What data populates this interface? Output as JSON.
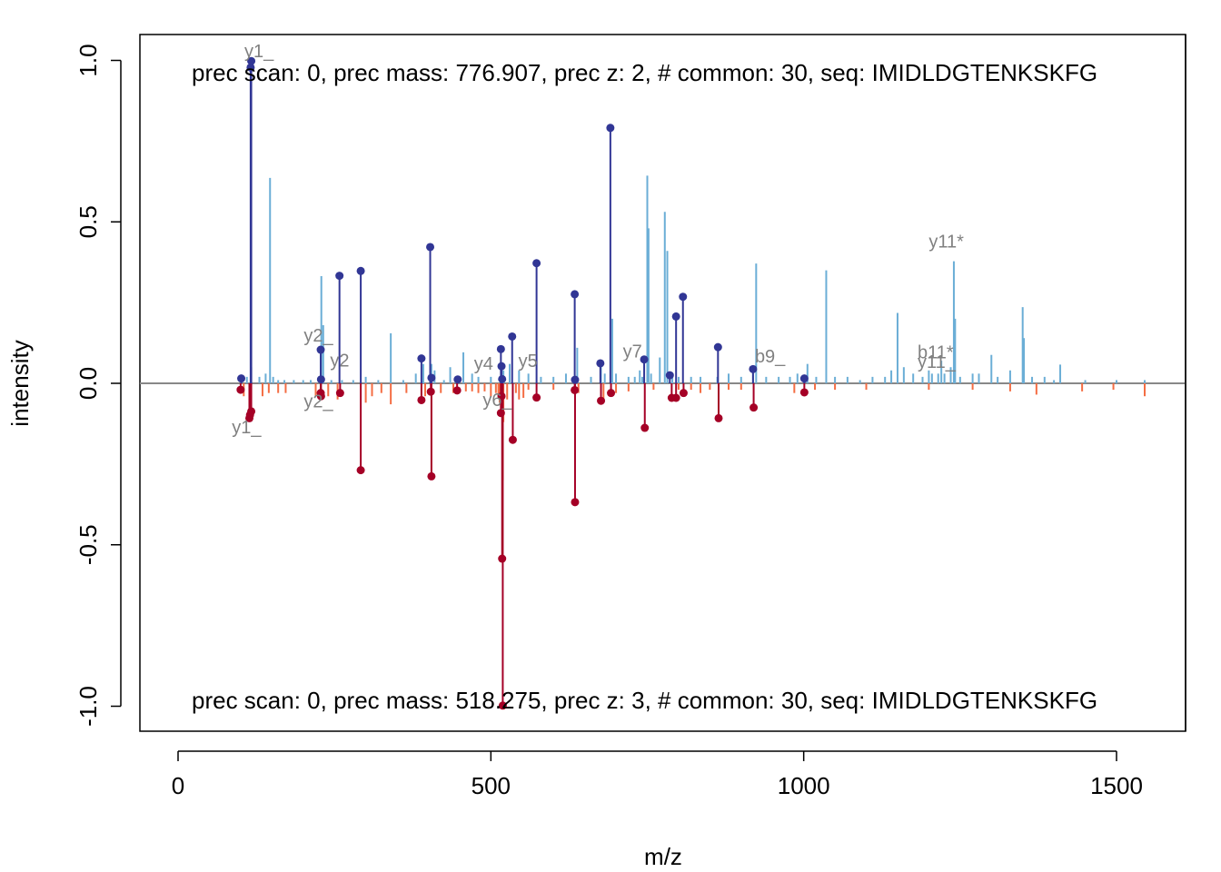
{
  "chart_data": {
    "type": "mirror-spectrum",
    "xlabel": "m/z",
    "ylabel": "intensity",
    "xlim": [
      0,
      1620
    ],
    "ylim": [
      -1.08,
      1.08
    ],
    "x_ticks": [
      0,
      500,
      1000,
      1500
    ],
    "x_tick_labels": [
      "0",
      "500",
      "1000",
      "1500"
    ],
    "y_ticks": [
      -1.0,
      -0.5,
      0.0,
      0.5,
      1.0
    ],
    "y_tick_labels": [
      "-1.0",
      "-0.5",
      "0.0",
      "0.5",
      "1.0"
    ],
    "grid": false,
    "top_header": "prec scan: 0, prec mass: 776.907, prec z: 2, # common: 30, seq: IMIDLDGTENKSKFG",
    "bottom_header": "prec scan: 0, prec mass: 518.275, prec z: 3, # common: 30, seq: IMIDLDGTENKSKFG",
    "colors": {
      "top_peak": "#6BAED6",
      "top_match": "#313695",
      "bottom_peak": "#F46D43",
      "bottom_match": "#A50026",
      "zero_line": "#888888",
      "label": "#808080"
    },
    "top_spectrum": {
      "peaks": [
        [
          110,
          0.02
        ],
        [
          117,
          0.05
        ],
        [
          130,
          0.02
        ],
        [
          140,
          0.03
        ],
        [
          147,
          0.636
        ],
        [
          152,
          0.02
        ],
        [
          160,
          0.01
        ],
        [
          170,
          0.01
        ],
        [
          185,
          0.01
        ],
        [
          200,
          0.01
        ],
        [
          212,
          0.01
        ],
        [
          229,
          0.332
        ],
        [
          232,
          0.18
        ],
        [
          245,
          0.01
        ],
        [
          262,
          0.01
        ],
        [
          280,
          0.01
        ],
        [
          300,
          0.02
        ],
        [
          320,
          0.01
        ],
        [
          340,
          0.155
        ],
        [
          360,
          0.01
        ],
        [
          380,
          0.03
        ],
        [
          392,
          0.06
        ],
        [
          405,
          0.06
        ],
        [
          410,
          0.04
        ],
        [
          425,
          0.01
        ],
        [
          435,
          0.05
        ],
        [
          448,
          0.02
        ],
        [
          456,
          0.096
        ],
        [
          470,
          0.03
        ],
        [
          480,
          0.02
        ],
        [
          500,
          0.02
        ],
        [
          520,
          0.04
        ],
        [
          530,
          0.06
        ],
        [
          545,
          0.04
        ],
        [
          560,
          0.03
        ],
        [
          580,
          0.02
        ],
        [
          600,
          0.02
        ],
        [
          620,
          0.03
        ],
        [
          638,
          0.11
        ],
        [
          660,
          0.02
        ],
        [
          676,
          0.05
        ],
        [
          682,
          0.03
        ],
        [
          694,
          0.2
        ],
        [
          700,
          0.03
        ],
        [
          720,
          0.02
        ],
        [
          730,
          0.02
        ],
        [
          738,
          0.04
        ],
        [
          742,
          0.02
        ],
        [
          750,
          0.643
        ],
        [
          752,
          0.48
        ],
        [
          756,
          0.03
        ],
        [
          770,
          0.08
        ],
        [
          778,
          0.531
        ],
        [
          782,
          0.41
        ],
        [
          790,
          0.03
        ],
        [
          800,
          0.02
        ],
        [
          820,
          0.02
        ],
        [
          835,
          0.02
        ],
        [
          862,
          0.02
        ],
        [
          880,
          0.03
        ],
        [
          900,
          0.02
        ],
        [
          919,
          0.03
        ],
        [
          924,
          0.371
        ],
        [
          940,
          0.02
        ],
        [
          960,
          0.02
        ],
        [
          978,
          0.02
        ],
        [
          990,
          0.03
        ],
        [
          1006,
          0.06
        ],
        [
          1020,
          0.02
        ],
        [
          1036,
          0.35
        ],
        [
          1050,
          0.02
        ],
        [
          1070,
          0.02
        ],
        [
          1090,
          0.01
        ],
        [
          1110,
          0.02
        ],
        [
          1130,
          0.02
        ],
        [
          1140,
          0.04
        ],
        [
          1150,
          0.218
        ],
        [
          1160,
          0.05
        ],
        [
          1175,
          0.03
        ],
        [
          1190,
          0.02
        ],
        [
          1200,
          0.04
        ],
        [
          1205,
          0.03
        ],
        [
          1215,
          0.03
        ],
        [
          1220,
          0.07
        ],
        [
          1225,
          0.03
        ],
        [
          1235,
          0.05
        ],
        [
          1240,
          0.378
        ],
        [
          1242,
          0.2
        ],
        [
          1250,
          0.02
        ],
        [
          1270,
          0.03
        ],
        [
          1280,
          0.03
        ],
        [
          1300,
          0.088
        ],
        [
          1310,
          0.02
        ],
        [
          1330,
          0.04
        ],
        [
          1350,
          0.236
        ],
        [
          1352,
          0.14
        ],
        [
          1365,
          0.02
        ],
        [
          1385,
          0.02
        ],
        [
          1400,
          0.01
        ],
        [
          1410,
          0.058
        ],
        [
          1450,
          0.01
        ],
        [
          1500,
          0.01
        ],
        [
          1545,
          0.01
        ]
      ],
      "matched": [
        [
          101,
          0.015
        ],
        [
          116,
          0.978
        ],
        [
          117,
          0.998
        ],
        [
          228,
          0.104
        ],
        [
          228.5,
          0.012
        ],
        [
          258,
          0.333
        ],
        [
          292,
          0.348
        ],
        [
          389,
          0.077
        ],
        [
          403,
          0.422
        ],
        [
          405,
          0.017
        ],
        [
          447,
          0.012
        ],
        [
          516,
          0.106
        ],
        [
          517,
          0.053
        ],
        [
          518,
          0.013
        ],
        [
          534,
          0.145
        ],
        [
          573,
          0.372
        ],
        [
          634,
          0.276
        ],
        [
          634.5,
          0.011
        ],
        [
          675,
          0.062
        ],
        [
          691,
          0.791
        ],
        [
          745,
          0.074
        ],
        [
          786,
          0.025
        ],
        [
          796,
          0.207
        ],
        [
          807,
          0.268
        ],
        [
          863,
          0.112
        ],
        [
          919,
          0.044
        ],
        [
          1001,
          0.015
        ]
      ]
    },
    "bottom_spectrum": {
      "peaks": [
        [
          105,
          0.04
        ],
        [
          135,
          0.04
        ],
        [
          145,
          0.03
        ],
        [
          160,
          0.03
        ],
        [
          172,
          0.03
        ],
        [
          220,
          0.04
        ],
        [
          240,
          0.04
        ],
        [
          255,
          0.05
        ],
        [
          300,
          0.06
        ],
        [
          310,
          0.04
        ],
        [
          325,
          0.03
        ],
        [
          340,
          0.065
        ],
        [
          365,
          0.03
        ],
        [
          395,
          0.04
        ],
        [
          420,
          0.03
        ],
        [
          440,
          0.03
        ],
        [
          460,
          0.025
        ],
        [
          470,
          0.025
        ],
        [
          480,
          0.03
        ],
        [
          490,
          0.025
        ],
        [
          500,
          0.04
        ],
        [
          508,
          0.03
        ],
        [
          512,
          0.04
        ],
        [
          514,
          0.06
        ],
        [
          519,
          0.3
        ],
        [
          520,
          0.12
        ],
        [
          526,
          0.05
        ],
        [
          540,
          0.03
        ],
        [
          545,
          0.05
        ],
        [
          552,
          0.045
        ],
        [
          560,
          0.02
        ],
        [
          600,
          0.02
        ],
        [
          640,
          0.03
        ],
        [
          680,
          0.05
        ],
        [
          700,
          0.03
        ],
        [
          720,
          0.025
        ],
        [
          760,
          0.02
        ],
        [
          800,
          0.02
        ],
        [
          820,
          0.02
        ],
        [
          835,
          0.03
        ],
        [
          850,
          0.02
        ],
        [
          880,
          0.02
        ],
        [
          900,
          0.02
        ],
        [
          985,
          0.03
        ],
        [
          1018,
          0.02
        ],
        [
          1050,
          0.02
        ],
        [
          1100,
          0.02
        ],
        [
          1200,
          0.02
        ],
        [
          1270,
          0.02
        ],
        [
          1330,
          0.025
        ],
        [
          1372,
          0.035
        ],
        [
          1445,
          0.025
        ],
        [
          1495,
          0.02
        ],
        [
          1545,
          0.04
        ]
      ],
      "matched": [
        [
          100,
          0.02
        ],
        [
          114,
          0.108
        ],
        [
          115,
          0.098
        ],
        [
          117,
          0.087
        ],
        [
          228,
          0.03
        ],
        [
          228.5,
          0.04
        ],
        [
          259,
          0.03
        ],
        [
          292,
          0.269
        ],
        [
          389,
          0.052
        ],
        [
          404,
          0.026
        ],
        [
          405,
          0.288
        ],
        [
          446,
          0.022
        ],
        [
          516,
          0.092
        ],
        [
          517,
          0.04
        ],
        [
          518,
          0.543
        ],
        [
          519,
          0.998
        ],
        [
          535,
          0.175
        ],
        [
          573,
          0.044
        ],
        [
          634,
          0.021
        ],
        [
          634.5,
          0.368
        ],
        [
          676,
          0.054
        ],
        [
          692,
          0.03
        ],
        [
          746,
          0.138
        ],
        [
          789,
          0.045
        ],
        [
          796,
          0.045
        ],
        [
          808,
          0.03
        ],
        [
          864,
          0.108
        ],
        [
          920,
          0.075
        ],
        [
          1001,
          0.028
        ]
      ]
    },
    "annotations": [
      {
        "text": "y1_",
        "x": 106,
        "y": 1.01
      },
      {
        "text": "y2_",
        "x": 201,
        "y": 0.13
      },
      {
        "text": "y2",
        "x": 243,
        "y": 0.052
      },
      {
        "text": "y4",
        "x": 473,
        "y": 0.042
      },
      {
        "text": "y5",
        "x": 544,
        "y": 0.05
      },
      {
        "text": "y7",
        "x": 711,
        "y": 0.08
      },
      {
        "text": "b9_",
        "x": 922,
        "y": 0.064
      },
      {
        "text": "y11*",
        "x": 1200,
        "y": 0.42
      },
      {
        "text": "b11*",
        "x": 1182,
        "y": 0.078
      },
      {
        "text": "y11_",
        "x": 1182,
        "y": 0.048
      },
      {
        "text": "y1_",
        "x": 86,
        "y": -0.155
      },
      {
        "text": "y2_",
        "x": 201,
        "y": -0.075
      },
      {
        "text": "y6_",
        "x": 487,
        "y": -0.07
      }
    ]
  }
}
